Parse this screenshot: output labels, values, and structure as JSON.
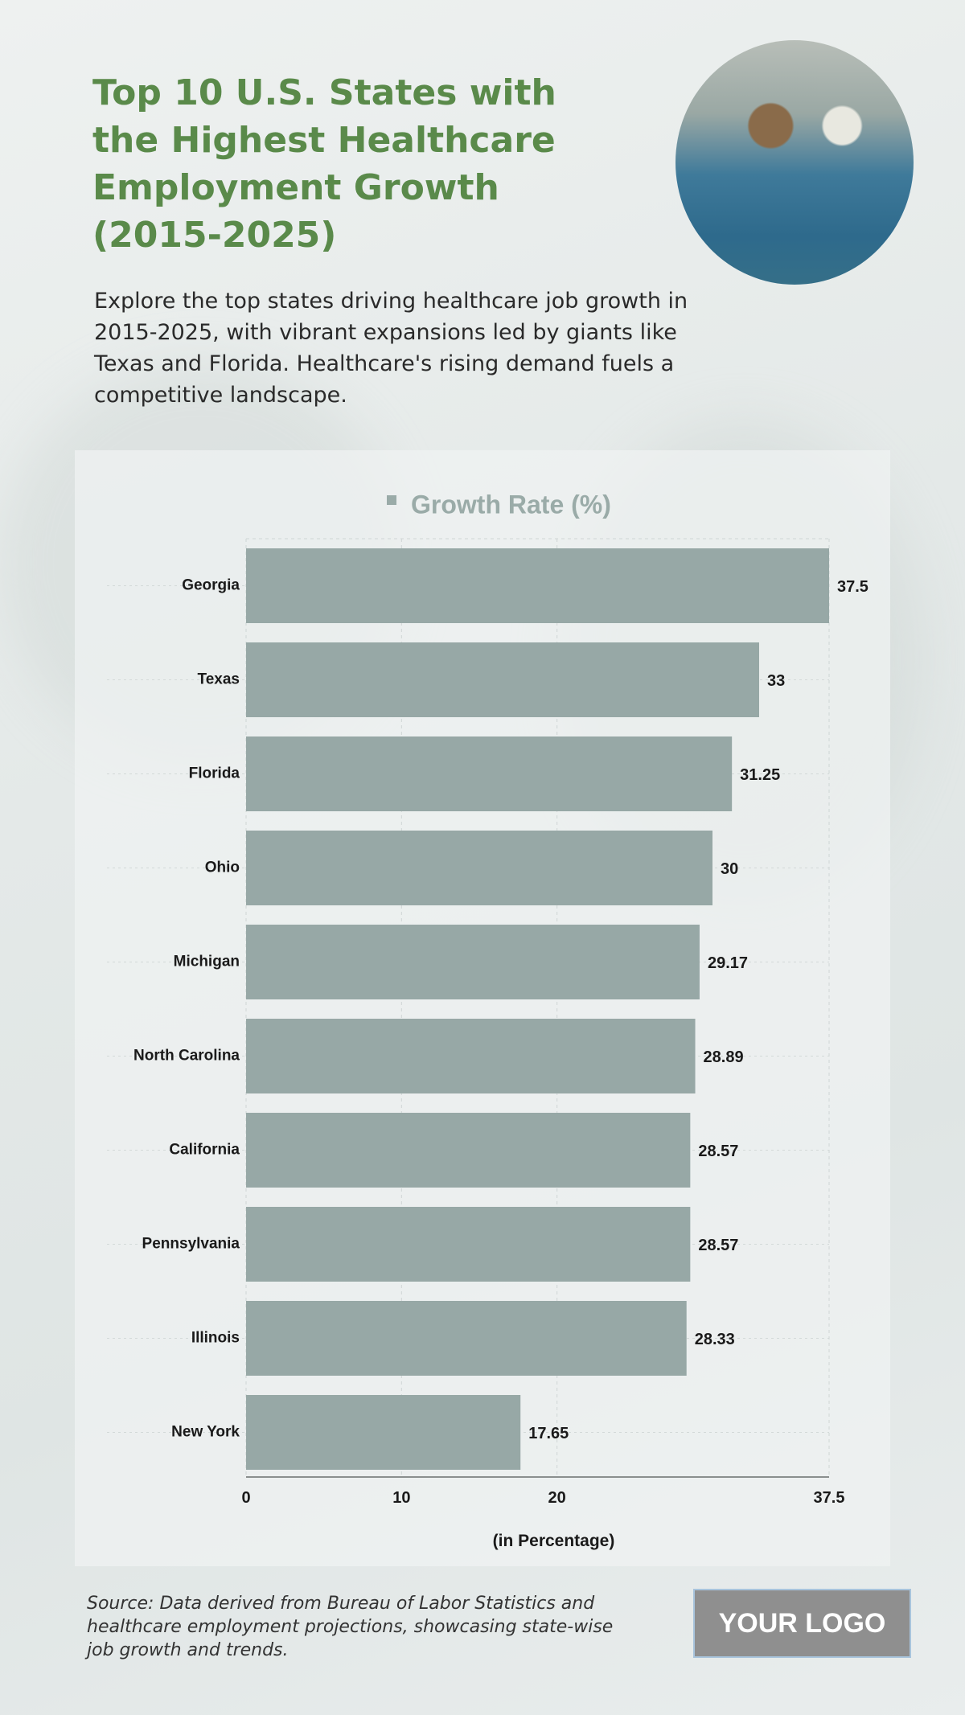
{
  "header": {
    "title": "Top 10 U.S. States with the Highest Healthcare Employment Growth (2015-2025)",
    "description": "Explore the top states driving healthcare job growth in 2015-2025, with vibrant expansions led by giants like Texas and Florida. Healthcare's rising demand fuels a competitive landscape."
  },
  "footer": {
    "source": "Source: Data derived from Bureau of Labor Statistics and healthcare employment projections, showcasing state-wise job growth and trends.",
    "logo": "YOUR LOGO"
  },
  "colors": {
    "title": "#5a8a4a",
    "bar": "#97a8a6",
    "legend_text": "#9aaba8"
  },
  "chart_data": {
    "type": "bar",
    "orientation": "horizontal",
    "categories": [
      "Georgia",
      "Texas",
      "Florida",
      "Ohio",
      "Michigan",
      "North Carolina",
      "California",
      "Pennsylvania",
      "Illinois",
      "New York"
    ],
    "series": [
      {
        "name": "Growth Rate (%)",
        "values": [
          37.5,
          33,
          31.25,
          30,
          29.17,
          28.89,
          28.57,
          28.57,
          28.33,
          17.65
        ]
      }
    ],
    "data_labels": [
      "37.5",
      "33",
      "31.25",
      "30",
      "29.17",
      "28.89",
      "28.57",
      "28.57",
      "28.33",
      "17.65"
    ],
    "xlabel": "(in Percentage)",
    "xticks": [
      0,
      10,
      20,
      37.5
    ],
    "xtick_labels": [
      "0",
      "10",
      "20",
      "37.5"
    ],
    "xlim": [
      0,
      37.5
    ],
    "grid": true,
    "legend_position": "top"
  }
}
